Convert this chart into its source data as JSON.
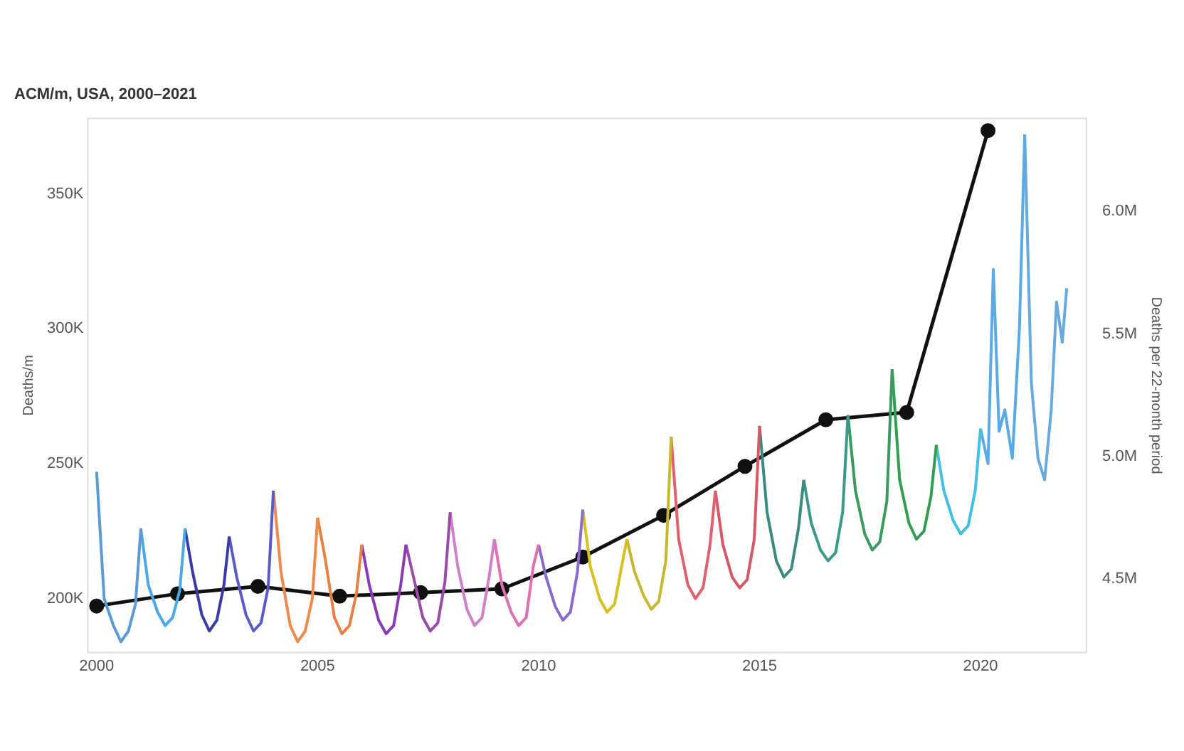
{
  "chart_data": {
    "type": "line",
    "title": "ACM/m, USA, 2000–2021",
    "ylabel": "Deaths/m",
    "y2label": "Deaths per 22-month period",
    "xlim": [
      1999.8,
      2022.4
    ],
    "xticks": [
      2000,
      2005,
      2010,
      2015,
      2020
    ],
    "ylim": [
      180000,
      378000
    ],
    "yticks": [
      {
        "value": 200000,
        "label": "200K"
      },
      {
        "value": 250000,
        "label": "250K"
      },
      {
        "value": 300000,
        "label": "300K"
      },
      {
        "value": 350000,
        "label": "350K"
      }
    ],
    "y2lim": [
      4200000,
      6380000
    ],
    "y2ticks": [
      {
        "value": 4500000,
        "label": "4.5M"
      },
      {
        "value": 5000000,
        "label": "5.0M"
      },
      {
        "value": 5500000,
        "label": "5.5M"
      },
      {
        "value": 6000000,
        "label": "6.0M"
      }
    ],
    "grid": false,
    "legend": false,
    "series": [
      {
        "marker": "none",
        "color": "#5b9bd5",
        "x": [
          2000,
          2000.17,
          2000.38,
          2000.55,
          2000.72,
          2000.88,
          2001
        ],
        "values": [
          247000,
          200000,
          190000,
          184000,
          188000,
          198000,
          226000
        ]
      },
      {
        "marker": "none",
        "color": "#4aa8e8",
        "x": [
          2001,
          2001.17,
          2001.38,
          2001.55,
          2001.72,
          2001.88,
          2002
        ],
        "values": [
          226000,
          205000,
          195000,
          190000,
          193000,
          203000,
          226000
        ]
      },
      {
        "marker": "none",
        "color": "#3a3aa8",
        "x": [
          2002,
          2002.17,
          2002.38,
          2002.55,
          2002.72,
          2002.88,
          2003
        ],
        "values": [
          226000,
          210000,
          194000,
          188000,
          192000,
          205000,
          223000
        ]
      },
      {
        "marker": "none",
        "color": "#5a5ac8",
        "x": [
          2003,
          2003.17,
          2003.38,
          2003.55,
          2003.72,
          2003.88,
          2004
        ],
        "values": [
          223000,
          208000,
          194000,
          188000,
          191000,
          204000,
          240000
        ]
      },
      {
        "marker": "none",
        "color": "#f08a4b",
        "x": [
          2004,
          2004.17,
          2004.38,
          2004.55,
          2004.72,
          2004.88,
          2005
        ],
        "values": [
          240000,
          210000,
          190000,
          184000,
          188000,
          200000,
          230000
        ]
      },
      {
        "marker": "none",
        "color": "#e88040",
        "x": [
          2005,
          2005.17,
          2005.38,
          2005.55,
          2005.72,
          2005.88,
          2006
        ],
        "values": [
          230000,
          215000,
          193000,
          187000,
          190000,
          202000,
          220000
        ]
      },
      {
        "marker": "none",
        "color": "#8a3ab8",
        "x": [
          2006,
          2006.17,
          2006.38,
          2006.55,
          2006.72,
          2006.88,
          2007
        ],
        "values": [
          220000,
          205000,
          192000,
          187000,
          190000,
          205000,
          220000
        ]
      },
      {
        "marker": "none",
        "color": "#9a4aa8",
        "x": [
          2007,
          2007.17,
          2007.38,
          2007.55,
          2007.72,
          2007.88,
          2008
        ],
        "values": [
          220000,
          208000,
          193000,
          188000,
          191000,
          206000,
          232000
        ]
      },
      {
        "marker": "none",
        "color": "#d080c8",
        "x": [
          2008,
          2008.17,
          2008.38,
          2008.55,
          2008.72,
          2008.88,
          2009
        ],
        "values": [
          232000,
          212000,
          196000,
          190000,
          193000,
          208000,
          222000
        ]
      },
      {
        "marker": "none",
        "color": "#e070b0",
        "x": [
          2009,
          2009.17,
          2009.38,
          2009.55,
          2009.72,
          2009.88,
          2010
        ],
        "values": [
          222000,
          205000,
          195000,
          190000,
          193000,
          212000,
          220000
        ]
      },
      {
        "marker": "none",
        "color": "#8a6ad0",
        "x": [
          2010,
          2010.17,
          2010.38,
          2010.55,
          2010.72,
          2010.88,
          2011
        ],
        "values": [
          220000,
          208000,
          197000,
          192000,
          195000,
          210000,
          233000
        ]
      },
      {
        "marker": "none",
        "color": "#d8c020",
        "x": [
          2011,
          2011.17,
          2011.38,
          2011.55,
          2011.72,
          2011.88,
          2012
        ],
        "values": [
          233000,
          212000,
          200000,
          195000,
          198000,
          212000,
          222000
        ]
      },
      {
        "marker": "none",
        "color": "#c8b830",
        "x": [
          2012,
          2012.17,
          2012.38,
          2012.55,
          2012.72,
          2012.88,
          2013
        ],
        "values": [
          222000,
          210000,
          201000,
          196000,
          199000,
          214000,
          260000
        ]
      },
      {
        "marker": "none",
        "color": "#e06070",
        "x": [
          2013,
          2013.17,
          2013.38,
          2013.55,
          2013.72,
          2013.88,
          2014
        ],
        "values": [
          260000,
          222000,
          205000,
          200000,
          204000,
          220000,
          240000
        ]
      },
      {
        "marker": "none",
        "color": "#d85868",
        "x": [
          2014,
          2014.17,
          2014.38,
          2014.55,
          2014.72,
          2014.88,
          2015
        ],
        "values": [
          240000,
          220000,
          208000,
          204000,
          207000,
          222000,
          264000
        ]
      },
      {
        "marker": "none",
        "color": "#3a8a80",
        "x": [
          2015,
          2015.17,
          2015.38,
          2015.55,
          2015.72,
          2015.88,
          2016
        ],
        "values": [
          264000,
          232000,
          214000,
          208000,
          211000,
          226000,
          244000
        ]
      },
      {
        "marker": "none",
        "color": "#3a9a8a",
        "x": [
          2016,
          2016.17,
          2016.38,
          2016.55,
          2016.72,
          2016.88,
          2017
        ],
        "values": [
          244000,
          228000,
          218000,
          214000,
          217000,
          232000,
          268000
        ]
      },
      {
        "marker": "none",
        "color": "#3a9a60",
        "x": [
          2017,
          2017.17,
          2017.38,
          2017.55,
          2017.72,
          2017.88,
          2018
        ],
        "values": [
          268000,
          240000,
          224000,
          218000,
          221000,
          236000,
          285000
        ]
      },
      {
        "marker": "none",
        "color": "#30a050",
        "x": [
          2018,
          2018.17,
          2018.38,
          2018.55,
          2018.72,
          2018.88,
          2019
        ],
        "values": [
          285000,
          244000,
          228000,
          222000,
          225000,
          238000,
          257000
        ]
      },
      {
        "marker": "none",
        "color": "#40c0e8",
        "x": [
          2019,
          2019.17,
          2019.38,
          2019.55,
          2019.72,
          2019.88,
          2020
        ],
        "values": [
          257000,
          240000,
          229000,
          224000,
          227000,
          240000,
          263000
        ]
      },
      {
        "marker": "none",
        "color": "#5aaae8",
        "x": [
          2020,
          2020.17,
          2020.29,
          2020.42,
          2020.55,
          2020.72,
          2020.88,
          2021
        ],
        "values": [
          263000,
          250000,
          322000,
          262000,
          270000,
          252000,
          300000,
          372000
        ]
      },
      {
        "marker": "none",
        "color": "#6aa8e0",
        "x": [
          2021,
          2021.15,
          2021.3,
          2021.45,
          2021.6,
          2021.72,
          2021.85,
          2021.95
        ],
        "values": [
          372000,
          280000,
          252000,
          244000,
          270000,
          310000,
          295000,
          315000
        ]
      },
      {
        "axis": "y2",
        "marker": "circle",
        "color": "#111111",
        "x": [
          2000,
          2001.83,
          2003.65,
          2005.5,
          2007.33,
          2009.17,
          2011,
          2012.83,
          2014.67,
          2016.5,
          2018.33,
          2020.17
        ],
        "values": [
          4390000,
          4440000,
          4470000,
          4430000,
          4445000,
          4460000,
          4590000,
          4760000,
          4960000,
          5150000,
          5180000,
          6330000
        ]
      }
    ]
  }
}
